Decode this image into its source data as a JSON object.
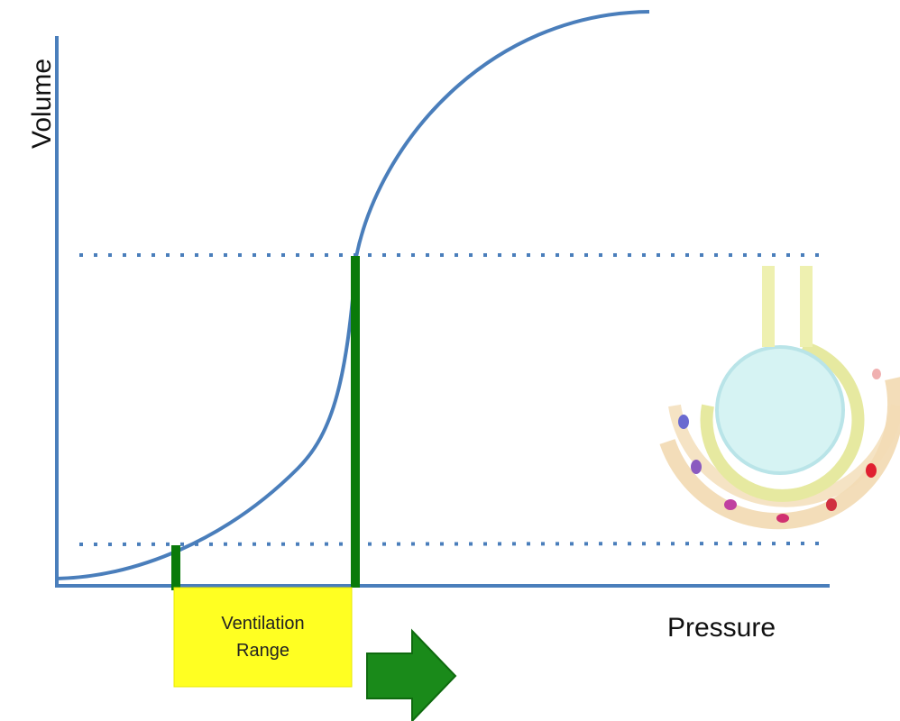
{
  "axes": {
    "y_label": "Volume",
    "x_label": "Pressure"
  },
  "box": {
    "label": "Ventilation Range"
  }
}
